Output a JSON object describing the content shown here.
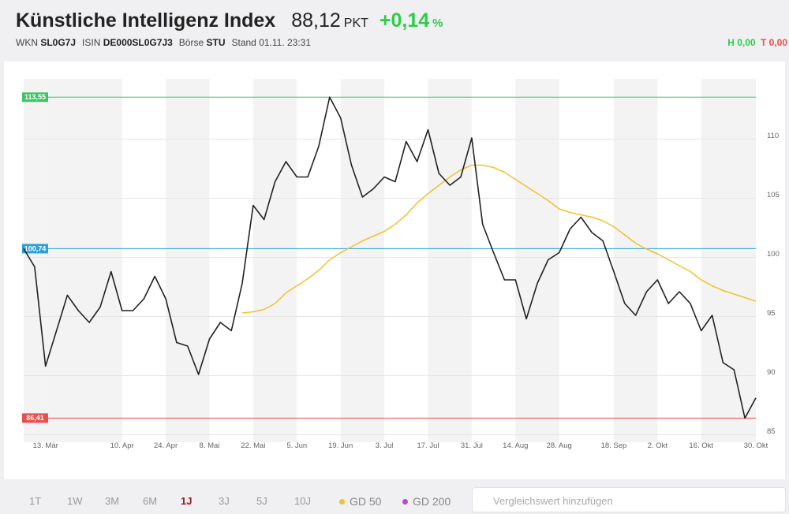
{
  "header": {
    "title": "Künstliche Intelligenz Index",
    "price": "88,12",
    "unit": "PKT",
    "change": "+0,14",
    "change_unit": "%",
    "meta": [
      {
        "key": "WKN",
        "value": "SL0G7J"
      },
      {
        "key": "ISIN",
        "value": "DE000SL0G7J3"
      },
      {
        "key": "Börse",
        "value": "STU"
      }
    ],
    "stand": "Stand 01.11. 23:31",
    "high_key": "H",
    "high": "0,00",
    "low_key": "T",
    "low": "0,00"
  },
  "chart_data": {
    "type": "line",
    "categories": [
      null,
      null,
      "13. Mär",
      null,
      null,
      null,
      null,
      null,
      null,
      "10. Apr",
      null,
      null,
      null,
      "24. Apr",
      null,
      null,
      null,
      "8. Mai",
      null,
      null,
      null,
      "22. Mai",
      null,
      null,
      null,
      "5. Jun",
      null,
      null,
      null,
      "19. Jun",
      null,
      null,
      null,
      "3. Jul",
      null,
      null,
      null,
      "17. Jul",
      null,
      null,
      null,
      "31. Jul",
      null,
      null,
      null,
      "14. Aug",
      null,
      null,
      null,
      "28. Aug",
      null,
      null,
      null,
      null,
      "18. Sep",
      null,
      null,
      null,
      "2. Okt",
      null,
      null,
      null,
      "16. Okt",
      null,
      null,
      null,
      null,
      "30. Okt"
    ],
    "series": [
      {
        "color": "#222222",
        "values": [
          100.74,
          99.2,
          90.8,
          93.8,
          96.8,
          95.5,
          94.5,
          95.8,
          98.8,
          95.5,
          95.5,
          96.5,
          98.4,
          96.5,
          92.8,
          92.5,
          90.1,
          93.1,
          94.5,
          93.8,
          97.8,
          104.4,
          103.2,
          106.4,
          108.1,
          106.8,
          106.8,
          109.4,
          113.55,
          111.8,
          107.8,
          105.1,
          105.8,
          106.8,
          106.4,
          109.8,
          108.1,
          110.8,
          107.1,
          106.1,
          106.8,
          110.1,
          102.8,
          100.4,
          98.1,
          98.1,
          94.8,
          97.8,
          99.8,
          100.4,
          102.4,
          103.4,
          102.1,
          101.4,
          98.8,
          96.1,
          95.1,
          97.1,
          98.1,
          96.1,
          97.1,
          96.1,
          93.8,
          95.1,
          91.1,
          90.5,
          86.41,
          88.12
        ]
      },
      {
        "color": "#f2c12e",
        "values": [
          null,
          null,
          null,
          null,
          null,
          null,
          null,
          null,
          null,
          null,
          null,
          null,
          null,
          null,
          null,
          null,
          null,
          null,
          null,
          null,
          95.3,
          95.4,
          95.6,
          96.1,
          97.0,
          97.6,
          98.2,
          98.9,
          99.8,
          100.4,
          100.9,
          101.4,
          101.8,
          102.2,
          102.8,
          103.6,
          104.6,
          105.4,
          106.1,
          106.8,
          107.4,
          107.8,
          107.8,
          107.6,
          107.2,
          106.6,
          106.0,
          105.4,
          104.8,
          104.1,
          103.8,
          103.6,
          103.4,
          103.1,
          102.6,
          101.9,
          101.2,
          100.7,
          100.3,
          99.8,
          99.3,
          98.8,
          98.1,
          97.6,
          97.2,
          96.9,
          96.6,
          96.3
        ]
      }
    ],
    "reference_lines": [
      {
        "value": 113.55,
        "label": "113,55",
        "color": "#3cc464"
      },
      {
        "value": 100.74,
        "label": "100,74",
        "color": "#2b9fd9"
      },
      {
        "value": 86.41,
        "label": "86,41",
        "color": "#e8504c"
      }
    ],
    "ylim": [
      84.9,
      115.1
    ],
    "yticks": [
      85,
      90,
      95,
      100,
      105,
      110
    ],
    "grid": true
  },
  "toolbar": {
    "ranges": [
      "1T",
      "1W",
      "3M",
      "6M",
      "1J",
      "3J",
      "5J",
      "10J"
    ],
    "active_range": 4,
    "indicators": [
      {
        "label": "GD 50",
        "color": "#f2c12e"
      },
      {
        "label": "GD 200",
        "color": "#b04fc7"
      }
    ],
    "search_placeholder": "Vergleichswert hinzufügen"
  }
}
